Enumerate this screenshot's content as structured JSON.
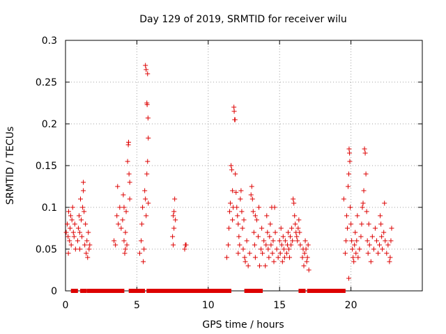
{
  "chart_data": {
    "type": "scatter",
    "title": "Day 129 of 2019, SRMTID for receiver wilu",
    "xlabel": "GPS time / hours",
    "ylabel": "SRMTID / TECUs",
    "xlim": [
      0,
      25
    ],
    "ylim": [
      0,
      0.3
    ],
    "x_ticks": [
      0,
      5,
      10,
      15,
      20
    ],
    "x_tick_labels": [
      "0",
      "5",
      "10",
      "15",
      "20"
    ],
    "y_ticks": [
      0,
      0.05,
      0.1,
      0.15,
      0.2,
      0.25,
      0.3
    ],
    "y_tick_labels": [
      "0",
      "0.05",
      "0.1",
      "0.15",
      "0.2",
      "0.25",
      "0.3"
    ],
    "grid": true,
    "marker": "+",
    "color": "#dd0000",
    "series": [
      {
        "name": "SRMTID",
        "points": [
          [
            0.05,
            0.07
          ],
          [
            0.12,
            0.08
          ],
          [
            0.18,
            0.065
          ],
          [
            0.22,
            0.095
          ],
          [
            0.28,
            0.06
          ],
          [
            0.32,
            0.075
          ],
          [
            0.36,
            0.09
          ],
          [
            0.4,
            0.055
          ],
          [
            0.45,
            0.085
          ],
          [
            0.5,
            0.1
          ],
          [
            0.55,
            0.07
          ],
          [
            0.6,
            0.065
          ],
          [
            0.65,
            0.08
          ],
          [
            0.7,
            0.05
          ],
          [
            0.2,
            0.045
          ],
          [
            0.85,
            0.06
          ],
          [
            0.9,
            0.075
          ],
          [
            0.95,
            0.09
          ],
          [
            1.0,
            0.07
          ],
          [
            1.05,
            0.11
          ],
          [
            1.1,
            0.085
          ],
          [
            1.15,
            0.065
          ],
          [
            1.2,
            0.1
          ],
          [
            1.25,
            0.13
          ],
          [
            1.3,
            0.095
          ],
          [
            1.35,
            0.055
          ],
          [
            1.4,
            0.08
          ],
          [
            1.45,
            0.045
          ],
          [
            1.5,
            0.06
          ],
          [
            1.55,
            0.04
          ],
          [
            1.6,
            0.07
          ],
          [
            1.65,
            0.05
          ],
          [
            1.7,
            0.055
          ],
          [
            1.25,
            0.12
          ],
          [
            1.0,
            0.05
          ],
          [
            3.4,
            0.06
          ],
          [
            3.5,
            0.055
          ],
          [
            3.6,
            0.09
          ],
          [
            3.65,
            0.125
          ],
          [
            3.7,
            0.08
          ],
          [
            3.8,
            0.1
          ],
          [
            3.9,
            0.075
          ],
          [
            4.0,
            0.085
          ],
          [
            4.05,
            0.115
          ],
          [
            4.1,
            0.06
          ],
          [
            4.15,
            0.045
          ],
          [
            4.2,
            0.07
          ],
          [
            4.25,
            0.095
          ],
          [
            4.3,
            0.055
          ],
          [
            4.35,
            0.155
          ],
          [
            4.4,
            0.175
          ],
          [
            4.42,
            0.178
          ],
          [
            4.45,
            0.14
          ],
          [
            4.5,
            0.11
          ],
          [
            4.5,
            0.13
          ],
          [
            4.1,
            0.1
          ],
          [
            4.2,
            0.05
          ],
          [
            5.2,
            0.045
          ],
          [
            5.3,
            0.06
          ],
          [
            5.35,
            0.08
          ],
          [
            5.4,
            0.1
          ],
          [
            5.45,
            0.035
          ],
          [
            5.5,
            0.05
          ],
          [
            5.55,
            0.12
          ],
          [
            5.6,
            0.27
          ],
          [
            5.65,
            0.265
          ],
          [
            5.7,
            0.225
          ],
          [
            5.72,
            0.223
          ],
          [
            5.75,
            0.26
          ],
          [
            5.78,
            0.207
          ],
          [
            5.8,
            0.183
          ],
          [
            5.75,
            0.155
          ],
          [
            5.7,
            0.14
          ],
          [
            5.65,
            0.09
          ],
          [
            5.6,
            0.11
          ],
          [
            5.8,
            0.105
          ],
          [
            7.5,
            0.065
          ],
          [
            7.55,
            0.09
          ],
          [
            7.6,
            0.095
          ],
          [
            7.65,
            0.11
          ],
          [
            7.7,
            0.085
          ],
          [
            7.55,
            0.055
          ],
          [
            7.6,
            0.075
          ],
          [
            8.35,
            0.05
          ],
          [
            8.4,
            0.055
          ],
          [
            8.45,
            0.055
          ],
          [
            11.3,
            0.04
          ],
          [
            11.4,
            0.055
          ],
          [
            11.45,
            0.075
          ],
          [
            11.5,
            0.095
          ],
          [
            11.55,
            0.105
          ],
          [
            11.6,
            0.15
          ],
          [
            11.65,
            0.145
          ],
          [
            11.7,
            0.12
          ],
          [
            11.75,
            0.1
          ],
          [
            11.8,
            0.22
          ],
          [
            11.82,
            0.215
          ],
          [
            11.85,
            0.205
          ],
          [
            11.88,
            0.205
          ],
          [
            11.9,
            0.14
          ],
          [
            11.95,
            0.118
          ],
          [
            12.0,
            0.1
          ],
          [
            12.05,
            0.09
          ],
          [
            12.1,
            0.08
          ],
          [
            12.15,
            0.065
          ],
          [
            12.2,
            0.055
          ],
          [
            12.25,
            0.11
          ],
          [
            12.3,
            0.12
          ],
          [
            12.35,
            0.095
          ],
          [
            12.4,
            0.075
          ],
          [
            12.45,
            0.05
          ],
          [
            12.5,
            0.085
          ],
          [
            12.55,
            0.04
          ],
          [
            12.6,
            0.035
          ],
          [
            12.7,
            0.06
          ],
          [
            12.8,
            0.03
          ],
          [
            12.9,
            0.045
          ],
          [
            13.0,
            0.115
          ],
          [
            13.05,
            0.125
          ],
          [
            13.1,
            0.11
          ],
          [
            13.15,
            0.095
          ],
          [
            13.2,
            0.07
          ],
          [
            13.25,
            0.055
          ],
          [
            13.3,
            0.04
          ],
          [
            13.4,
            0.085
          ],
          [
            13.5,
            0.065
          ],
          [
            13.55,
            0.1
          ],
          [
            13.6,
            0.03
          ],
          [
            13.7,
            0.05
          ],
          [
            13.75,
            0.075
          ],
          [
            13.8,
            0.045
          ],
          [
            13.9,
            0.06
          ],
          [
            14.0,
            0.03
          ],
          [
            14.05,
            0.055
          ],
          [
            14.1,
            0.09
          ],
          [
            14.15,
            0.07
          ],
          [
            14.2,
            0.05
          ],
          [
            14.25,
            0.04
          ],
          [
            14.3,
            0.065
          ],
          [
            14.35,
            0.08
          ],
          [
            14.4,
            0.055
          ],
          [
            14.45,
            0.1
          ],
          [
            14.5,
            0.045
          ],
          [
            14.55,
            0.06
          ],
          [
            14.6,
            0.035
          ],
          [
            14.7,
            0.07
          ],
          [
            14.8,
            0.05
          ],
          [
            14.9,
            0.04
          ],
          [
            15.0,
            0.06
          ],
          [
            15.05,
            0.045
          ],
          [
            15.1,
            0.075
          ],
          [
            15.15,
            0.055
          ],
          [
            15.2,
            0.035
          ],
          [
            15.25,
            0.065
          ],
          [
            15.3,
            0.05
          ],
          [
            15.35,
            0.04
          ],
          [
            15.4,
            0.06
          ],
          [
            15.5,
            0.045
          ],
          [
            15.55,
            0.055
          ],
          [
            15.6,
            0.07
          ],
          [
            15.65,
            0.05
          ],
          [
            15.7,
            0.04
          ],
          [
            15.75,
            0.065
          ],
          [
            15.8,
            0.055
          ],
          [
            15.85,
            0.075
          ],
          [
            15.9,
            0.06
          ],
          [
            15.95,
            0.11
          ],
          [
            16.0,
            0.105
          ],
          [
            16.05,
            0.09
          ],
          [
            16.1,
            0.08
          ],
          [
            16.15,
            0.07
          ],
          [
            16.2,
            0.065
          ],
          [
            16.25,
            0.06
          ],
          [
            16.3,
            0.075
          ],
          [
            16.35,
            0.085
          ],
          [
            16.4,
            0.07
          ],
          [
            16.45,
            0.055
          ],
          [
            16.6,
            0.04
          ],
          [
            16.7,
            0.03
          ],
          [
            16.75,
            0.045
          ],
          [
            16.8,
            0.06
          ],
          [
            16.85,
            0.05
          ],
          [
            16.9,
            0.035
          ],
          [
            16.95,
            0.04
          ],
          [
            17.0,
            0.055
          ],
          [
            17.05,
            0.025
          ],
          [
            16.65,
            0.05
          ],
          [
            11.7,
            0.085
          ],
          [
            12.1,
            0.045
          ],
          [
            13.3,
            0.09
          ],
          [
            14.65,
            0.1
          ],
          [
            19.5,
            0.11
          ],
          [
            19.6,
            0.045
          ],
          [
            19.65,
            0.06
          ],
          [
            19.7,
            0.09
          ],
          [
            19.75,
            0.075
          ],
          [
            19.8,
            0.125
          ],
          [
            19.85,
            0.14
          ],
          [
            19.87,
            0.17
          ],
          [
            19.9,
            0.165
          ],
          [
            19.92,
            0.155
          ],
          [
            19.95,
            0.1
          ],
          [
            20.0,
            0.08
          ],
          [
            20.05,
            0.06
          ],
          [
            20.1,
            0.05
          ],
          [
            20.15,
            0.04
          ],
          [
            20.2,
            0.035
          ],
          [
            20.25,
            0.055
          ],
          [
            20.3,
            0.07
          ],
          [
            20.35,
            0.045
          ],
          [
            20.4,
            0.06
          ],
          [
            20.5,
            0.04
          ],
          [
            20.6,
            0.05
          ],
          [
            20.7,
            0.065
          ],
          [
            20.75,
            0.08
          ],
          [
            20.8,
            0.1
          ],
          [
            20.85,
            0.105
          ],
          [
            20.9,
            0.12
          ],
          [
            20.95,
            0.17
          ],
          [
            21.0,
            0.165
          ],
          [
            21.05,
            0.14
          ],
          [
            21.1,
            0.095
          ],
          [
            21.15,
            0.06
          ],
          [
            21.2,
            0.045
          ],
          [
            21.3,
            0.055
          ],
          [
            21.4,
            0.035
          ],
          [
            21.5,
            0.065
          ],
          [
            21.6,
            0.05
          ],
          [
            21.7,
            0.075
          ],
          [
            21.8,
            0.06
          ],
          [
            21.9,
            0.045
          ],
          [
            22.0,
            0.055
          ],
          [
            22.05,
            0.09
          ],
          [
            22.1,
            0.08
          ],
          [
            22.15,
            0.065
          ],
          [
            22.2,
            0.05
          ],
          [
            22.3,
            0.07
          ],
          [
            22.35,
            0.105
          ],
          [
            22.4,
            0.06
          ],
          [
            22.5,
            0.045
          ],
          [
            22.6,
            0.055
          ],
          [
            22.7,
            0.035
          ],
          [
            22.75,
            0.04
          ],
          [
            22.8,
            0.06
          ],
          [
            22.85,
            0.075
          ],
          [
            19.85,
            0.015
          ],
          [
            20.45,
            0.09
          ],
          [
            21.25,
            0.08
          ]
        ]
      },
      {
        "name": "zero-level",
        "x_ranges": [
          [
            0.55,
            0.7
          ],
          [
            1.2,
            1.3
          ],
          [
            1.65,
            3.7
          ],
          [
            3.85,
            3.95
          ],
          [
            4.6,
            5.4
          ],
          [
            5.85,
            11.45
          ],
          [
            12.7,
            12.85
          ],
          [
            13.05,
            13.25
          ],
          [
            13.5,
            13.65
          ],
          [
            16.5,
            16.65
          ],
          [
            17.1,
            19.45
          ]
        ],
        "y": 0
      }
    ]
  }
}
